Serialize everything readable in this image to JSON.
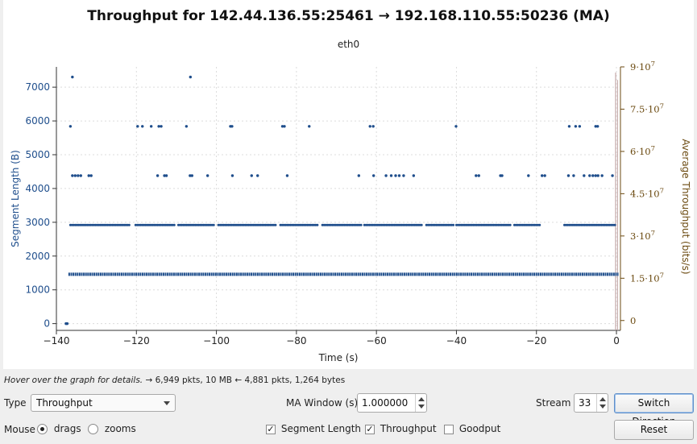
{
  "chart_data": {
    "type": "scatter",
    "title": "Throughput for 142.44.136.55:25461 → 192.168.110.55:50236 (MA)",
    "subtitle": "eth0",
    "xlabel": "Time (s)",
    "ylabel": "Segment Length (B)",
    "y2label": "Average Throughput (bits/s)",
    "xlim": [
      -140,
      1
    ],
    "ylim": [
      -200,
      7600
    ],
    "y2lim": [
      -3500000,
      90000000
    ],
    "x_ticks": [
      "-140",
      "-120",
      "-100",
      "-80",
      "-60",
      "-40",
      "-20",
      "0"
    ],
    "y_ticks": [
      "0",
      "1000",
      "2000",
      "3000",
      "4000",
      "5000",
      "6000",
      "7000"
    ],
    "y2_ticks": [
      "0",
      "1.5·10",
      "3·10",
      "4.5·10",
      "6·10",
      "7.5·10",
      "9·10"
    ],
    "y2_tick_exponent": "7",
    "grid": true,
    "colors": {
      "segment": "#1f4e8c",
      "throughput": "#6b4a10",
      "throughput_line": "#c4a8a8"
    },
    "series": [
      {
        "name": "Segment Length",
        "points": [
          [
            -137.6,
            0
          ],
          [
            -137.3,
            0
          ],
          [
            -136,
            7300
          ],
          [
            -106.5,
            7300
          ],
          [
            -136.5,
            5840
          ],
          [
            -119.7,
            5840
          ],
          [
            -118.5,
            5840
          ],
          [
            -116.3,
            5840
          ],
          [
            -114.4,
            5840
          ],
          [
            -113.8,
            5840
          ],
          [
            -107.5,
            5840
          ],
          [
            -96.5,
            5840
          ],
          [
            -96.1,
            5840
          ],
          [
            -83.5,
            5840
          ],
          [
            -83.0,
            5840
          ],
          [
            -76.8,
            5840
          ],
          [
            -61.6,
            5840
          ],
          [
            -60.8,
            5840
          ],
          [
            -40.1,
            5840
          ],
          [
            -11.8,
            5840
          ],
          [
            -10.2,
            5840
          ],
          [
            -9.2,
            5840
          ],
          [
            -5.2,
            5840
          ],
          [
            -4.7,
            5840
          ],
          [
            -136.0,
            4380
          ],
          [
            -135.3,
            4380
          ],
          [
            -134.6,
            4380
          ],
          [
            -133.9,
            4380
          ],
          [
            -131.9,
            4380
          ],
          [
            -131.3,
            4380
          ],
          [
            -114.7,
            4380
          ],
          [
            -113.0,
            4380
          ],
          [
            -112.5,
            4380
          ],
          [
            -106.6,
            4380
          ],
          [
            -106.1,
            4380
          ],
          [
            -102.2,
            4380
          ],
          [
            -96.0,
            4380
          ],
          [
            -91.2,
            4380
          ],
          [
            -89.7,
            4380
          ],
          [
            -82.3,
            4380
          ],
          [
            -64.4,
            4380
          ],
          [
            -60.7,
            4380
          ],
          [
            -57.6,
            4380
          ],
          [
            -56.3,
            4380
          ],
          [
            -55.2,
            4380
          ],
          [
            -54.3,
            4380
          ],
          [
            -53.2,
            4380
          ],
          [
            -50.7,
            4380
          ],
          [
            -35.1,
            4380
          ],
          [
            -34.4,
            4380
          ],
          [
            -29.0,
            4380
          ],
          [
            -28.6,
            4380
          ],
          [
            -22.0,
            4380
          ],
          [
            -18.6,
            4380
          ],
          [
            -17.9,
            4380
          ],
          [
            -12.0,
            4380
          ],
          [
            -10.7,
            4380
          ],
          [
            -8.1,
            4380
          ],
          [
            -6.7,
            4380
          ],
          [
            -5.9,
            4380
          ],
          [
            -5.2,
            4380
          ],
          [
            -4.6,
            4380
          ],
          [
            -3.6,
            4380
          ],
          [
            -1.0,
            4380
          ]
        ]
      }
    ],
    "segment_rows": [
      {
        "y": 2920,
        "ranges": [
          [
            -136.5,
            -121.5
          ],
          [
            -120.2,
            -110.5
          ],
          [
            -109.5,
            -100.5
          ],
          [
            -99.5,
            -85.0
          ],
          [
            -84.0,
            -74.5
          ],
          [
            -73.5,
            -63.5
          ],
          [
            -63.0,
            -48.5
          ],
          [
            -47.5,
            -40.5
          ],
          [
            -40.0,
            -26.5
          ],
          [
            -25.5,
            -19.0
          ],
          [
            -13.0,
            0
          ]
        ],
        "step": 0.42
      }
    ],
    "baseline": {
      "y": 1460,
      "x_from": -137,
      "x_to": 0.5
    },
    "throughput_spike": {
      "x": 0,
      "value": 88000000
    }
  },
  "status": {
    "hint": "Hover over the graph for details.",
    "summary": " → 6,949 pkts, 10 MB ← 4,881 pkts, 1,264 bytes"
  },
  "controls": {
    "type_label": "Type",
    "type_value": "Throughput",
    "ma_label": "MA Window (s)",
    "ma_value": "1.000000",
    "stream_label": "Stream",
    "stream_value": "33",
    "switch_label": "Switch Direction",
    "mouse_label": "Mouse",
    "drags_label": "drags",
    "zooms_label": "zooms",
    "segment_label": "Segment Length",
    "throughput_label": "Throughput",
    "goodput_label": "Goodput",
    "reset_label": "Reset"
  }
}
